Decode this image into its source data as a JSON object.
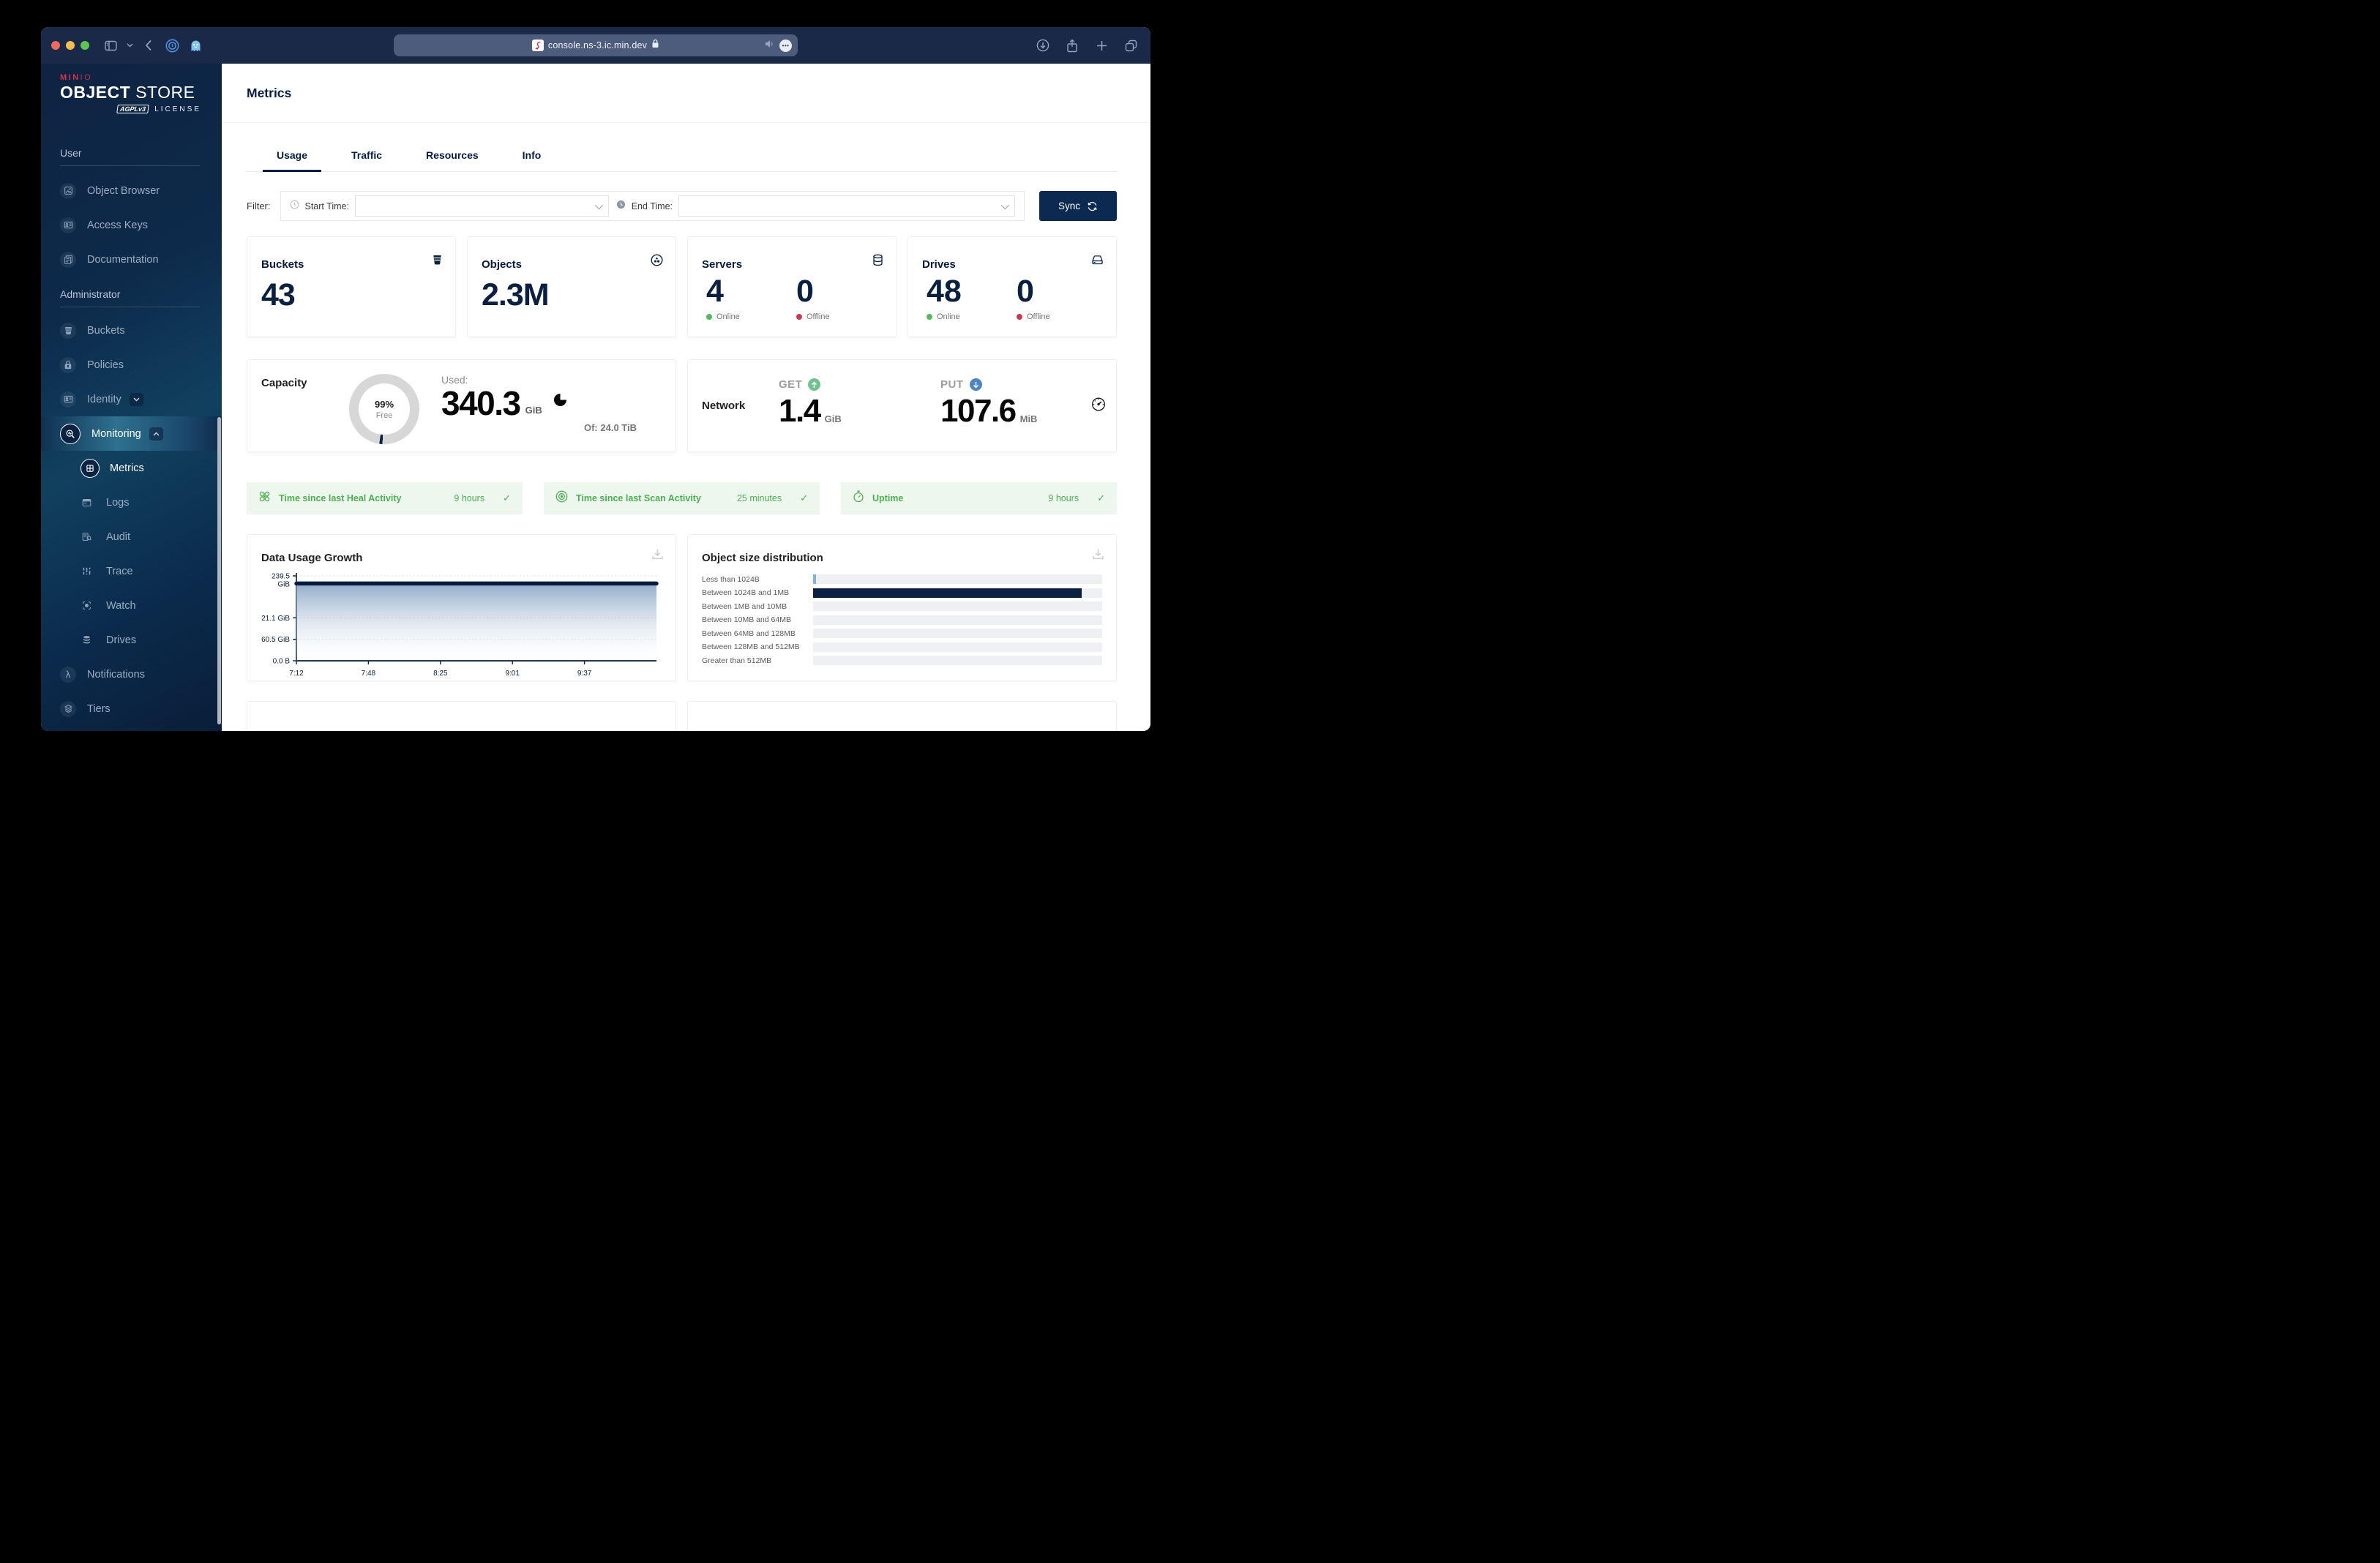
{
  "browser": {
    "url": "console.ns-3.ic.min.dev"
  },
  "sidebar": {
    "logo": {
      "brand_bold": "MIN",
      "brand_light": "IO",
      "title_bold": "OBJECT",
      "title_light": "STORE",
      "license_badge": "AGPLv3",
      "license_label": "LICENSE"
    },
    "headers": {
      "user": "User",
      "admin": "Administrator"
    },
    "items": {
      "object_browser": "Object Browser",
      "access_keys": "Access Keys",
      "documentation": "Documentation",
      "buckets": "Buckets",
      "policies": "Policies",
      "identity": "Identity",
      "monitoring": "Monitoring",
      "metrics": "Metrics",
      "logs": "Logs",
      "audit": "Audit",
      "trace": "Trace",
      "watch": "Watch",
      "drives": "Drives",
      "notifications": "Notifications",
      "tiers": "Tiers"
    }
  },
  "main": {
    "title": "Metrics",
    "tabs": [
      "Usage",
      "Traffic",
      "Resources",
      "Info"
    ],
    "filter": {
      "label": "Filter:",
      "start_label": "Start Time:",
      "end_label": "End Time:",
      "start_value": "",
      "end_value": "",
      "sync_label": "Sync"
    },
    "stats": {
      "buckets": {
        "label": "Buckets",
        "value": "43"
      },
      "objects": {
        "label": "Objects",
        "value": "2.3M"
      },
      "servers": {
        "label": "Servers",
        "online": "4",
        "offline": "0",
        "online_label": "Online",
        "offline_label": "Offline"
      },
      "drives": {
        "label": "Drives",
        "online": "48",
        "offline": "0",
        "online_label": "Online",
        "offline_label": "Offline"
      }
    },
    "capacity": {
      "title": "Capacity",
      "donut_pct": "99%",
      "donut_sub": "Free",
      "used_label": "Used:",
      "used_value": "340.3",
      "used_unit": "GiB",
      "of_label": "Of: 24.0 TiB",
      "donut": {
        "used_ring_pct": 1.4,
        "used_color": "#0a2144",
        "free_color": "#d7d7d7",
        "start_deg": 183
      }
    },
    "network": {
      "title": "Network",
      "get_label": "GET",
      "get_value": "1.4",
      "get_unit": "GiB",
      "put_label": "PUT",
      "put_value": "107.6",
      "put_unit": "MiB"
    },
    "status": [
      {
        "label": "Time since last Heal Activity",
        "value": "9 hours"
      },
      {
        "label": "Time since last Scan Activity",
        "value": "25 minutes"
      },
      {
        "label": "Uptime",
        "value": "9 hours"
      }
    ]
  },
  "chart_data": [
    {
      "type": "line",
      "title": "Data Usage Growth",
      "ylim": [
        0,
        239.5
      ],
      "y_ticks": [
        {
          "value": 239.5,
          "label": "239.5\nGiB"
        },
        {
          "value": 121.1,
          "label": "121.1 GiB"
        },
        {
          "value": 60.5,
          "label": "60.5 GiB"
        },
        {
          "value": 0,
          "label": "0.0 B"
        }
      ],
      "x_ticks": [
        "7:12",
        "7:48",
        "8:25",
        "9:01",
        "9:37"
      ],
      "series": [
        {
          "name": "Usage",
          "values": [
            218,
            218,
            218,
            218,
            218,
            218
          ]
        }
      ],
      "line_color": "#081c42",
      "area_top_color": "#8aa6c5",
      "grid": true,
      "legend": "none"
    },
    {
      "type": "bar",
      "title": "Object size distribution",
      "orientation": "horizontal",
      "categories": [
        "Less than 1024B",
        "Between 1024B and 1MB",
        "Between 1MB and 10MB",
        "Between 10MB and 64MB",
        "Between 64MB and 128MB",
        "Between 128MB and 512MB",
        "Greater than 512MB"
      ],
      "values_pct": [
        1,
        93,
        0,
        0,
        0,
        0,
        0
      ],
      "bar_colors": [
        "#7fb3e3",
        "#0a2144",
        "#0a2144",
        "#0a2144",
        "#0a2144",
        "#0a2144",
        "#0a2144"
      ],
      "track_color": "#eef0f3",
      "legend": "none"
    }
  ]
}
